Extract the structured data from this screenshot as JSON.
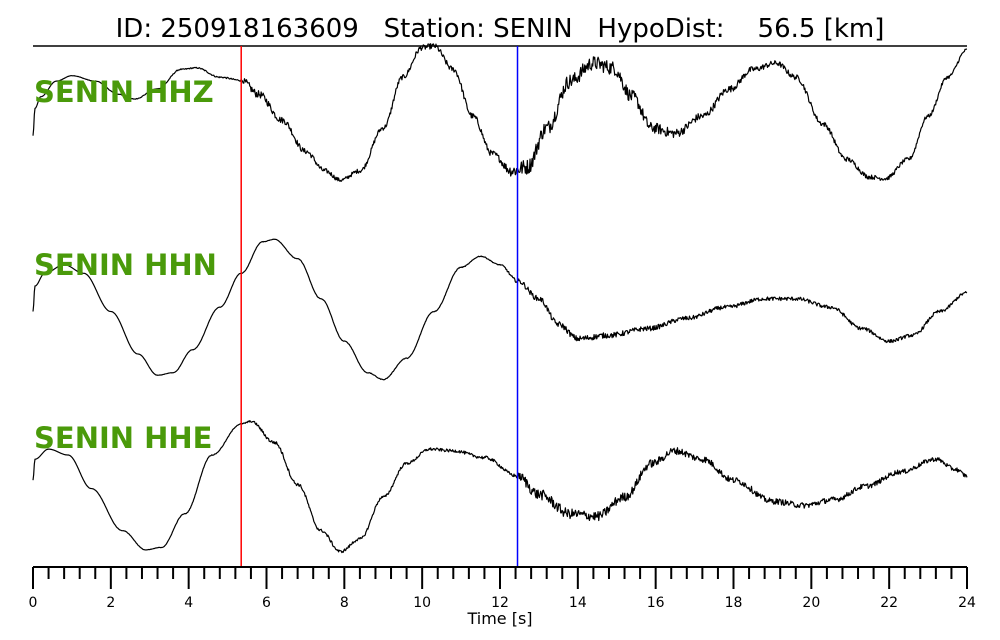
{
  "header": {
    "title": "ID: 250918163609   Station: SENIN   HypoDist:    56.5 [km]"
  },
  "chart_data": {
    "type": "line",
    "title": "ID: 250918163609   Station: SENIN   HypoDist:    56.5 [km]",
    "xlabel": "Time [s]",
    "ylabel": "",
    "xlim": [
      0,
      24
    ],
    "x_ticks": [
      0,
      2,
      4,
      6,
      8,
      10,
      12,
      14,
      16,
      18,
      20,
      22,
      24
    ],
    "x_tick_labels": [
      "0",
      "2",
      "4",
      "6",
      "8",
      "10",
      "12",
      "14",
      "16",
      "18",
      "20",
      "22",
      "24"
    ],
    "minor_tick_step": 0.4,
    "grid": false,
    "label_color": "#4a9a0a",
    "trace_color": "#000000",
    "picks": [
      {
        "name": "P",
        "x": 5.35,
        "color": "#ff0000"
      },
      {
        "name": "S",
        "x": 12.45,
        "color": "#0000ff"
      }
    ],
    "series": [
      {
        "name": "SENIN HHZ",
        "ylim": [
          -1,
          1
        ],
        "noise": [
          [
            0,
            0.0
          ],
          [
            5.3,
            0.01
          ],
          [
            5.5,
            0.05
          ],
          [
            8.0,
            0.025
          ],
          [
            10.0,
            0.035
          ],
          [
            12.0,
            0.04
          ],
          [
            12.5,
            0.1
          ],
          [
            15.0,
            0.09
          ],
          [
            17.0,
            0.05
          ],
          [
            19.0,
            0.035
          ],
          [
            21.0,
            0.03
          ],
          [
            24.0,
            0.02
          ]
        ],
        "points": [
          [
            0,
            -0.15
          ],
          [
            0.05,
            0.2
          ],
          [
            0.2,
            0.35
          ],
          [
            0.6,
            0.55
          ],
          [
            1.0,
            0.62
          ],
          [
            1.6,
            0.55
          ],
          [
            2.2,
            0.38
          ],
          [
            2.6,
            0.32
          ],
          [
            3.2,
            0.45
          ],
          [
            3.8,
            0.7
          ],
          [
            4.2,
            0.72
          ],
          [
            4.8,
            0.6
          ],
          [
            5.35,
            0.56
          ],
          [
            5.8,
            0.38
          ],
          [
            6.4,
            0.05
          ],
          [
            7.0,
            -0.35
          ],
          [
            7.5,
            -0.6
          ],
          [
            7.9,
            -0.72
          ],
          [
            8.4,
            -0.6
          ],
          [
            9.0,
            -0.05
          ],
          [
            9.5,
            0.6
          ],
          [
            10.0,
            0.98
          ],
          [
            10.3,
            1.0
          ],
          [
            10.8,
            0.7
          ],
          [
            11.3,
            0.1
          ],
          [
            11.8,
            -0.38
          ],
          [
            12.3,
            -0.6
          ],
          [
            12.7,
            -0.55
          ],
          [
            13.2,
            -0.05
          ],
          [
            13.8,
            0.55
          ],
          [
            14.4,
            0.78
          ],
          [
            14.9,
            0.72
          ],
          [
            15.4,
            0.35
          ],
          [
            15.9,
            -0.05
          ],
          [
            16.5,
            -0.12
          ],
          [
            17.2,
            0.1
          ],
          [
            17.9,
            0.45
          ],
          [
            18.5,
            0.7
          ],
          [
            19.1,
            0.78
          ],
          [
            19.6,
            0.6
          ],
          [
            20.3,
            0.0
          ],
          [
            20.9,
            -0.45
          ],
          [
            21.5,
            -0.68
          ],
          [
            21.9,
            -0.7
          ],
          [
            22.5,
            -0.45
          ],
          [
            23.0,
            0.1
          ],
          [
            23.5,
            0.6
          ],
          [
            24.0,
            0.95
          ]
        ]
      },
      {
        "name": "SENIN HHN",
        "ylim": [
          -1,
          1
        ],
        "noise": [
          [
            0,
            0.0
          ],
          [
            12.0,
            0.005
          ],
          [
            12.6,
            0.03
          ],
          [
            14.0,
            0.035
          ],
          [
            17.0,
            0.025
          ],
          [
            24.0,
            0.018
          ]
        ],
        "points": [
          [
            0,
            -0.1
          ],
          [
            0.05,
            0.2
          ],
          [
            0.3,
            0.35
          ],
          [
            0.8,
            0.45
          ],
          [
            1.3,
            0.35
          ],
          [
            2.0,
            -0.1
          ],
          [
            2.7,
            -0.6
          ],
          [
            3.2,
            -0.85
          ],
          [
            3.6,
            -0.82
          ],
          [
            4.1,
            -0.55
          ],
          [
            4.8,
            -0.05
          ],
          [
            5.35,
            0.35
          ],
          [
            5.9,
            0.72
          ],
          [
            6.2,
            0.75
          ],
          [
            6.8,
            0.52
          ],
          [
            7.4,
            0.05
          ],
          [
            8.0,
            -0.45
          ],
          [
            8.6,
            -0.82
          ],
          [
            9.0,
            -0.9
          ],
          [
            9.6,
            -0.65
          ],
          [
            10.3,
            -0.1
          ],
          [
            11.0,
            0.42
          ],
          [
            11.5,
            0.55
          ],
          [
            12.0,
            0.45
          ],
          [
            12.45,
            0.26
          ],
          [
            13.0,
            0.05
          ],
          [
            13.5,
            -0.25
          ],
          [
            14.0,
            -0.42
          ],
          [
            14.8,
            -0.38
          ],
          [
            15.8,
            -0.3
          ],
          [
            16.8,
            -0.18
          ],
          [
            17.8,
            -0.05
          ],
          [
            18.8,
            0.05
          ],
          [
            19.6,
            0.05
          ],
          [
            20.5,
            -0.05
          ],
          [
            21.3,
            -0.3
          ],
          [
            22.0,
            -0.45
          ],
          [
            22.6,
            -0.38
          ],
          [
            23.3,
            -0.1
          ],
          [
            24.0,
            0.12
          ]
        ]
      },
      {
        "name": "SENIN HHE",
        "ylim": [
          -1,
          1
        ],
        "noise": [
          [
            0,
            0.0
          ],
          [
            5.3,
            0.005
          ],
          [
            6.0,
            0.02
          ],
          [
            9.0,
            0.015
          ],
          [
            12.4,
            0.02
          ],
          [
            12.6,
            0.065
          ],
          [
            15.0,
            0.055
          ],
          [
            17.0,
            0.04
          ],
          [
            24.0,
            0.025
          ]
        ],
        "points": [
          [
            0,
            -0.05
          ],
          [
            0.05,
            0.2
          ],
          [
            0.4,
            0.32
          ],
          [
            0.9,
            0.25
          ],
          [
            1.5,
            -0.15
          ],
          [
            2.3,
            -0.65
          ],
          [
            2.9,
            -0.88
          ],
          [
            3.3,
            -0.85
          ],
          [
            3.9,
            -0.45
          ],
          [
            4.6,
            0.25
          ],
          [
            5.35,
            0.62
          ],
          [
            5.6,
            0.65
          ],
          [
            6.2,
            0.4
          ],
          [
            6.8,
            -0.1
          ],
          [
            7.4,
            -0.65
          ],
          [
            7.9,
            -0.9
          ],
          [
            8.4,
            -0.75
          ],
          [
            9.0,
            -0.25
          ],
          [
            9.6,
            0.15
          ],
          [
            10.2,
            0.32
          ],
          [
            10.8,
            0.3
          ],
          [
            11.6,
            0.22
          ],
          [
            12.45,
            0.0
          ],
          [
            13.0,
            -0.22
          ],
          [
            13.8,
            -0.45
          ],
          [
            14.5,
            -0.48
          ],
          [
            15.2,
            -0.25
          ],
          [
            15.9,
            0.15
          ],
          [
            16.5,
            0.3
          ],
          [
            17.2,
            0.2
          ],
          [
            18.0,
            -0.05
          ],
          [
            19.0,
            -0.3
          ],
          [
            19.8,
            -0.35
          ],
          [
            20.6,
            -0.28
          ],
          [
            21.4,
            -0.12
          ],
          [
            22.3,
            0.05
          ],
          [
            23.2,
            0.2
          ],
          [
            23.7,
            0.08
          ],
          [
            24.0,
            0.0
          ]
        ]
      }
    ]
  }
}
